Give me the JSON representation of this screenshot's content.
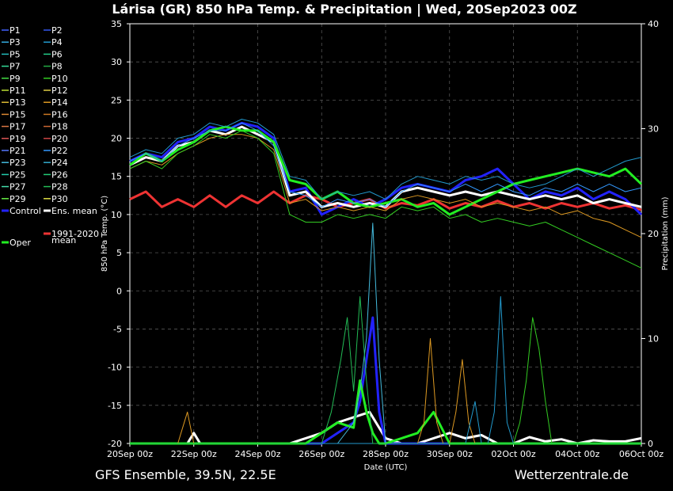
{
  "chart_data": {
    "type": "line",
    "title": "Lárisa  (GR)  850 hPa Temp. & Precipitation | Wed, 20Sep2023 00Z",
    "xlabel": "Date (UTC)",
    "ylabel": "850 hPa Temp. (°C)",
    "y2label": "Precipitation (mm)",
    "x_ticks": [
      "20Sep 00z",
      "22Sep 00z",
      "24Sep 00z",
      "26Sep 00z",
      "28Sep 00z",
      "30Sep 00z",
      "02Oct 00z",
      "04Oct 00z",
      "06Oct 00z"
    ],
    "y_ticks": [
      "35",
      "30",
      "25",
      "20",
      "15",
      "10",
      "5",
      "0",
      "-5",
      "-10",
      "-15",
      "-20"
    ],
    "y2_ticks": [
      "40",
      "30",
      "20",
      "10",
      "0"
    ],
    "ylim": [
      -20,
      35
    ],
    "y2lim": [
      0,
      40
    ],
    "x_range_days": [
      0,
      16
    ],
    "grid": true,
    "legend_placement": "left",
    "footer_left": "GFS Ensemble, 39.5N, 22.5E",
    "footer_right": "Wetterzentrale.de",
    "legend": [
      {
        "name": "P1",
        "color": "#4060ff"
      },
      {
        "name": "P2",
        "color": "#3355ee"
      },
      {
        "name": "P3",
        "color": "#33aadd"
      },
      {
        "name": "P4",
        "color": "#2299cc"
      },
      {
        "name": "P5",
        "color": "#22bbbb"
      },
      {
        "name": "P6",
        "color": "#22cc88"
      },
      {
        "name": "P7",
        "color": "#33dd99"
      },
      {
        "name": "P8",
        "color": "#22aa44"
      },
      {
        "name": "P9",
        "color": "#44dd44"
      },
      {
        "name": "P10",
        "color": "#33cc22"
      },
      {
        "name": "P11",
        "color": "#bbdd33"
      },
      {
        "name": "P12",
        "color": "#ddcc44"
      },
      {
        "name": "P13",
        "color": "#ddbb33"
      },
      {
        "name": "P14",
        "color": "#dd9922"
      },
      {
        "name": "P15",
        "color": "#dd8833"
      },
      {
        "name": "P16",
        "color": "#cc7722"
      },
      {
        "name": "P17",
        "color": "#dd7744"
      },
      {
        "name": "P18",
        "color": "#cc6633"
      },
      {
        "name": "P19",
        "color": "#dd5555"
      },
      {
        "name": "P20",
        "color": "#cc4444"
      },
      {
        "name": "P21",
        "color": "#5577ff"
      },
      {
        "name": "P22",
        "color": "#3399ff"
      },
      {
        "name": "P23",
        "color": "#44bbdd"
      },
      {
        "name": "P24",
        "color": "#33aacc"
      },
      {
        "name": "P25",
        "color": "#22ccaa"
      },
      {
        "name": "P26",
        "color": "#22cc77"
      },
      {
        "name": "P27",
        "color": "#44ddaa"
      },
      {
        "name": "P28",
        "color": "#22bb55"
      },
      {
        "name": "P29",
        "color": "#66ee44"
      },
      {
        "name": "P30",
        "color": "#dddd44"
      },
      {
        "name": "Control",
        "color": "#2222ff"
      },
      {
        "name": "Ens. mean",
        "color": "#ffffff"
      },
      {
        "name": "1991-2020 mean",
        "color": "#ee3333"
      },
      {
        "name": "Oper",
        "color": "#22ee22"
      }
    ],
    "series": [
      {
        "name": "1991-2020 mean",
        "color": "#ee3333",
        "width": 3,
        "x": [
          0,
          0.5,
          1,
          1.5,
          2,
          2.5,
          3,
          3.5,
          4,
          4.5,
          5,
          5.5,
          6,
          6.5,
          7,
          7.5,
          8,
          8.5,
          9,
          9.5,
          10,
          10.5,
          11,
          11.5,
          12,
          12.5,
          13,
          13.5,
          14,
          14.5,
          15,
          15.5,
          16
        ],
        "y": [
          12,
          13,
          11,
          12,
          11,
          12.5,
          11,
          12.5,
          11.5,
          13,
          11.5,
          12.5,
          12,
          11,
          11.5,
          12,
          10.8,
          11.5,
          11.2,
          12,
          10.8,
          11.5,
          11,
          11.8,
          11,
          11.5,
          10.8,
          11.5,
          11,
          11.5,
          10.8,
          11.2,
          10.6
        ]
      },
      {
        "name": "Control",
        "color": "#2222ff",
        "width": 3,
        "x": [
          0,
          0.5,
          1,
          1.5,
          2,
          2.5,
          3,
          3.5,
          4,
          4.5,
          5,
          5.5,
          6,
          6.5,
          7,
          7.5,
          8,
          8.5,
          9,
          9.5,
          10,
          10.5,
          11,
          11.5,
          12,
          12.5,
          13,
          13.5,
          14,
          14.5,
          15,
          15.5,
          16
        ],
        "y": [
          17,
          18,
          17.5,
          19.5,
          20,
          21.5,
          21,
          22,
          21.5,
          20,
          13,
          13.5,
          10,
          11,
          12,
          11,
          12,
          13.5,
          14,
          13.5,
          13,
          14.5,
          15,
          16,
          14,
          12,
          13,
          12.5,
          13.5,
          12,
          13,
          12,
          10
        ]
      },
      {
        "name": "Ens. mean",
        "color": "#ffffff",
        "width": 3,
        "x": [
          0,
          0.5,
          1,
          1.5,
          2,
          2.5,
          3,
          3.5,
          4,
          4.5,
          5,
          5.5,
          6,
          6.5,
          7,
          7.5,
          8,
          8.5,
          9,
          9.5,
          10,
          10.5,
          11,
          11.5,
          12,
          12.5,
          13,
          13.5,
          14,
          14.5,
          15,
          15.5,
          16
        ],
        "y": [
          16.5,
          17.5,
          17,
          19,
          19.5,
          21,
          20.5,
          21.5,
          20.5,
          19.5,
          12.5,
          13,
          11,
          11.5,
          11,
          11.5,
          11,
          13,
          13.5,
          13,
          12.5,
          13,
          12.5,
          13,
          12.5,
          12,
          12.5,
          12,
          12.5,
          11.5,
          12,
          11.5,
          11
        ]
      },
      {
        "name": "Oper",
        "color": "#22ee22",
        "width": 3,
        "x": [
          0,
          0.5,
          1,
          1.5,
          2,
          2.5,
          3,
          3.5,
          4,
          4.5,
          5,
          5.5,
          6,
          6.5,
          7,
          7.5,
          8,
          8.5,
          9,
          9.5,
          10,
          10.5,
          11,
          11.5,
          12,
          12.5,
          13,
          13.5,
          14,
          14.5,
          15,
          15.5,
          16
        ],
        "y": [
          16.5,
          18,
          17,
          18.5,
          19.5,
          21,
          21.5,
          21,
          21,
          19.5,
          14.5,
          14,
          12,
          13,
          11.5,
          11,
          11.5,
          12,
          11,
          11.5,
          10,
          11,
          12,
          13,
          14,
          14.5,
          15,
          15.5,
          16,
          15.5,
          15,
          16,
          14
        ]
      },
      {
        "name": "P14",
        "color": "#dd9922",
        "width": 1,
        "x": [
          0,
          0.5,
          1,
          1.5,
          2,
          2.5,
          3,
          3.5,
          4,
          4.5,
          5,
          5.5,
          6,
          6.5,
          7,
          7.5,
          8,
          8.5,
          9,
          9.5,
          10,
          10.5,
          11,
          11.5,
          12,
          12.5,
          13,
          13.5,
          14,
          14.5,
          15,
          15.5,
          16
        ],
        "y": [
          16,
          17,
          16.5,
          18,
          19,
          20,
          20.5,
          20.5,
          20,
          18.5,
          11.5,
          12,
          10.5,
          11,
          10.5,
          11,
          10.5,
          12,
          12.5,
          12,
          11.5,
          12,
          11,
          11.5,
          11,
          10.5,
          11,
          10,
          10.5,
          9.5,
          9,
          8,
          7
        ]
      },
      {
        "name": "P4",
        "color": "#2299cc",
        "width": 1,
        "x": [
          0,
          0.5,
          1,
          1.5,
          2,
          2.5,
          3,
          3.5,
          4,
          4.5,
          5,
          5.5,
          6,
          6.5,
          7,
          7.5,
          8,
          8.5,
          9,
          9.5,
          10,
          10.5,
          11,
          11.5,
          12,
          12.5,
          13,
          13.5,
          14,
          14.5,
          15,
          15.5,
          16
        ],
        "y": [
          17.5,
          18.5,
          18,
          20,
          20.5,
          22,
          21.5,
          22.5,
          22,
          20.5,
          15,
          14.5,
          12,
          13,
          12.5,
          13,
          12,
          14,
          15,
          14.5,
          14,
          15,
          14.5,
          15,
          14,
          13.5,
          14,
          15,
          16,
          15,
          16,
          17,
          17.5
        ]
      },
      {
        "name": "P10",
        "color": "#33cc22",
        "width": 1,
        "x": [
          0,
          0.5,
          1,
          1.5,
          2,
          2.5,
          3,
          3.5,
          4,
          4.5,
          5,
          5.5,
          6,
          6.5,
          7,
          7.5,
          8,
          8.5,
          9,
          9.5,
          10,
          10.5,
          11,
          11.5,
          12,
          12.5,
          13,
          13.5,
          14,
          14.5,
          15,
          15.5,
          16
        ],
        "y": [
          16,
          17,
          16,
          18,
          19,
          20.5,
          20,
          21,
          20,
          18,
          10,
          9,
          9,
          10,
          9.5,
          10,
          9.5,
          11,
          10.5,
          11,
          9.5,
          10,
          9,
          9.5,
          9,
          8.5,
          9,
          8,
          7,
          6,
          5,
          4,
          3
        ]
      },
      {
        "name": "P22",
        "color": "#3399ff",
        "width": 1,
        "x": [
          0,
          0.5,
          1,
          1.5,
          2,
          2.5,
          3,
          3.5,
          4,
          4.5,
          5,
          5.5,
          6,
          6.5,
          7,
          7.5,
          8,
          8.5,
          9,
          9.5,
          10,
          10.5,
          11,
          11.5,
          12,
          12.5,
          13,
          13.5,
          14,
          14.5,
          15,
          15.5,
          16
        ],
        "y": [
          17,
          18,
          17,
          19,
          20,
          21,
          21,
          22,
          21,
          19,
          13,
          12.5,
          11,
          12,
          11.5,
          12,
          11,
          13,
          14,
          13.5,
          13,
          14,
          13,
          14,
          13,
          12.5,
          13.5,
          13,
          14,
          13,
          14,
          13,
          13.5
        ]
      }
    ],
    "precip_series": [
      {
        "name": "Ens. mean",
        "color": "#ffffff",
        "width": 3,
        "x": [
          0,
          1.8,
          2,
          2.2,
          4,
          5,
          5.5,
          6,
          6.5,
          7,
          7.5,
          8,
          8.5,
          9,
          10,
          10.5,
          11,
          11.5,
          12,
          12.5,
          13,
          13.5,
          14,
          14.5,
          15,
          15.5,
          16
        ],
        "y": [
          0,
          0,
          1,
          0,
          0,
          0,
          0.5,
          1,
          2,
          2.5,
          3,
          0.5,
          0,
          0,
          1,
          0.5,
          0.8,
          0,
          0,
          0.6,
          0.2,
          0.4,
          0,
          0.3,
          0.2,
          0.2,
          0.5
        ]
      },
      {
        "name": "Control",
        "color": "#2222ff",
        "width": 3,
        "x": [
          0,
          6,
          6.5,
          7,
          7.2,
          7.4,
          7.6,
          7.8,
          8,
          9,
          16
        ],
        "y": [
          0,
          0,
          1,
          2,
          4,
          8,
          12,
          3,
          0,
          0,
          0
        ]
      },
      {
        "name": "Oper",
        "color": "#22ee22",
        "width": 3,
        "x": [
          0,
          5.5,
          6,
          6.5,
          7,
          7.2,
          7.4,
          7.6,
          7.8,
          8,
          8.5,
          9,
          9.5,
          10,
          10.5,
          16
        ],
        "y": [
          0,
          0,
          1,
          2,
          1.5,
          6,
          3,
          1,
          0,
          0,
          0.5,
          1,
          3,
          0,
          0,
          0
        ]
      },
      {
        "name": "P23",
        "color": "#44bbdd",
        "width": 1,
        "x": [
          0,
          6.5,
          7,
          7.2,
          7.4,
          7.6,
          7.8,
          8,
          9,
          16
        ],
        "y": [
          0,
          0,
          2,
          5,
          10,
          21,
          8,
          0,
          0,
          0
        ]
      },
      {
        "name": "P14",
        "color": "#dd9922",
        "width": 1,
        "x": [
          0,
          1.5,
          1.8,
          2,
          2.2,
          9,
          9.2,
          9.4,
          9.6,
          9.8,
          10,
          10.2,
          10.4,
          10.6,
          10.8,
          11,
          11.2,
          16
        ],
        "y": [
          0,
          0,
          3,
          0,
          0,
          0,
          2,
          10,
          2,
          0,
          0,
          3,
          8,
          2,
          0,
          0,
          0,
          0
        ]
      },
      {
        "name": "P10",
        "color": "#33cc22",
        "width": 1,
        "x": [
          0,
          12,
          12.2,
          12.4,
          12.6,
          12.8,
          13,
          13.2,
          16
        ],
        "y": [
          0,
          0,
          2,
          6,
          12,
          9,
          4,
          0,
          0
        ]
      },
      {
        "name": "P4",
        "color": "#2299cc",
        "width": 1,
        "x": [
          0,
          10.5,
          10.8,
          11,
          11.2,
          11.4,
          11.6,
          11.8,
          12,
          16
        ],
        "y": [
          0,
          0,
          4,
          0,
          0,
          3,
          14,
          2,
          0,
          0
        ]
      },
      {
        "name": "P28",
        "color": "#22bb55",
        "width": 1,
        "x": [
          0,
          6,
          6.3,
          6.6,
          6.8,
          7,
          7.2,
          7.4,
          7.6,
          16
        ],
        "y": [
          0,
          0,
          3,
          8,
          12,
          5,
          14,
          6,
          0,
          0
        ]
      }
    ]
  }
}
